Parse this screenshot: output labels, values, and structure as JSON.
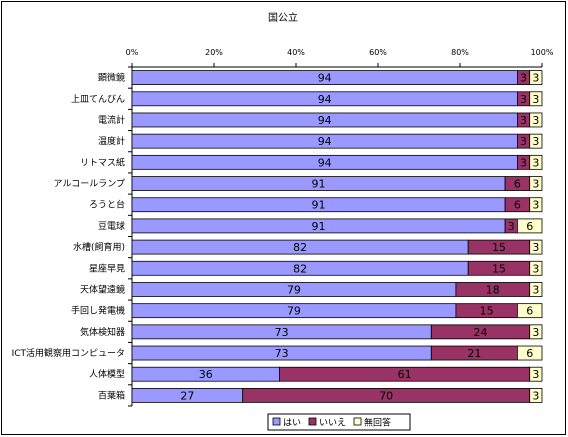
{
  "chart_data": {
    "type": "bar",
    "orientation": "horizontal",
    "stacked": "percent",
    "title": "国公立",
    "xlim": [
      0,
      100
    ],
    "x_ticks": [
      "0%",
      "20%",
      "40%",
      "60%",
      "80%",
      "100%"
    ],
    "x_tick_values": [
      0,
      20,
      40,
      60,
      80,
      100
    ],
    "grid": false,
    "legend_position": "bottom-right",
    "categories": [
      "顕微鏡",
      "上皿てんびん",
      "電流計",
      "温度計",
      "リトマス紙",
      "アルコールランプ",
      "ろうと台",
      "豆電球",
      "水槽(飼育用)",
      "星座早見",
      "天体望遠鏡",
      "手回し発電機",
      "気体検知器",
      "ICT活用観察用コンピュータ",
      "人体模型",
      "百葉箱"
    ],
    "series": [
      {
        "name": "はい",
        "color": "#9999ff",
        "values": [
          94,
          94,
          94,
          94,
          94,
          91,
          91,
          91,
          82,
          82,
          79,
          79,
          73,
          73,
          36,
          27
        ]
      },
      {
        "name": "いいえ",
        "color": "#993366",
        "values": [
          3,
          3,
          3,
          3,
          3,
          6,
          6,
          3,
          15,
          15,
          18,
          15,
          24,
          21,
          61,
          70
        ]
      },
      {
        "name": "無回答",
        "color": "#ffffcc",
        "values": [
          3,
          3,
          3,
          3,
          3,
          3,
          3,
          6,
          3,
          3,
          3,
          6,
          3,
          6,
          3,
          3
        ]
      }
    ]
  }
}
